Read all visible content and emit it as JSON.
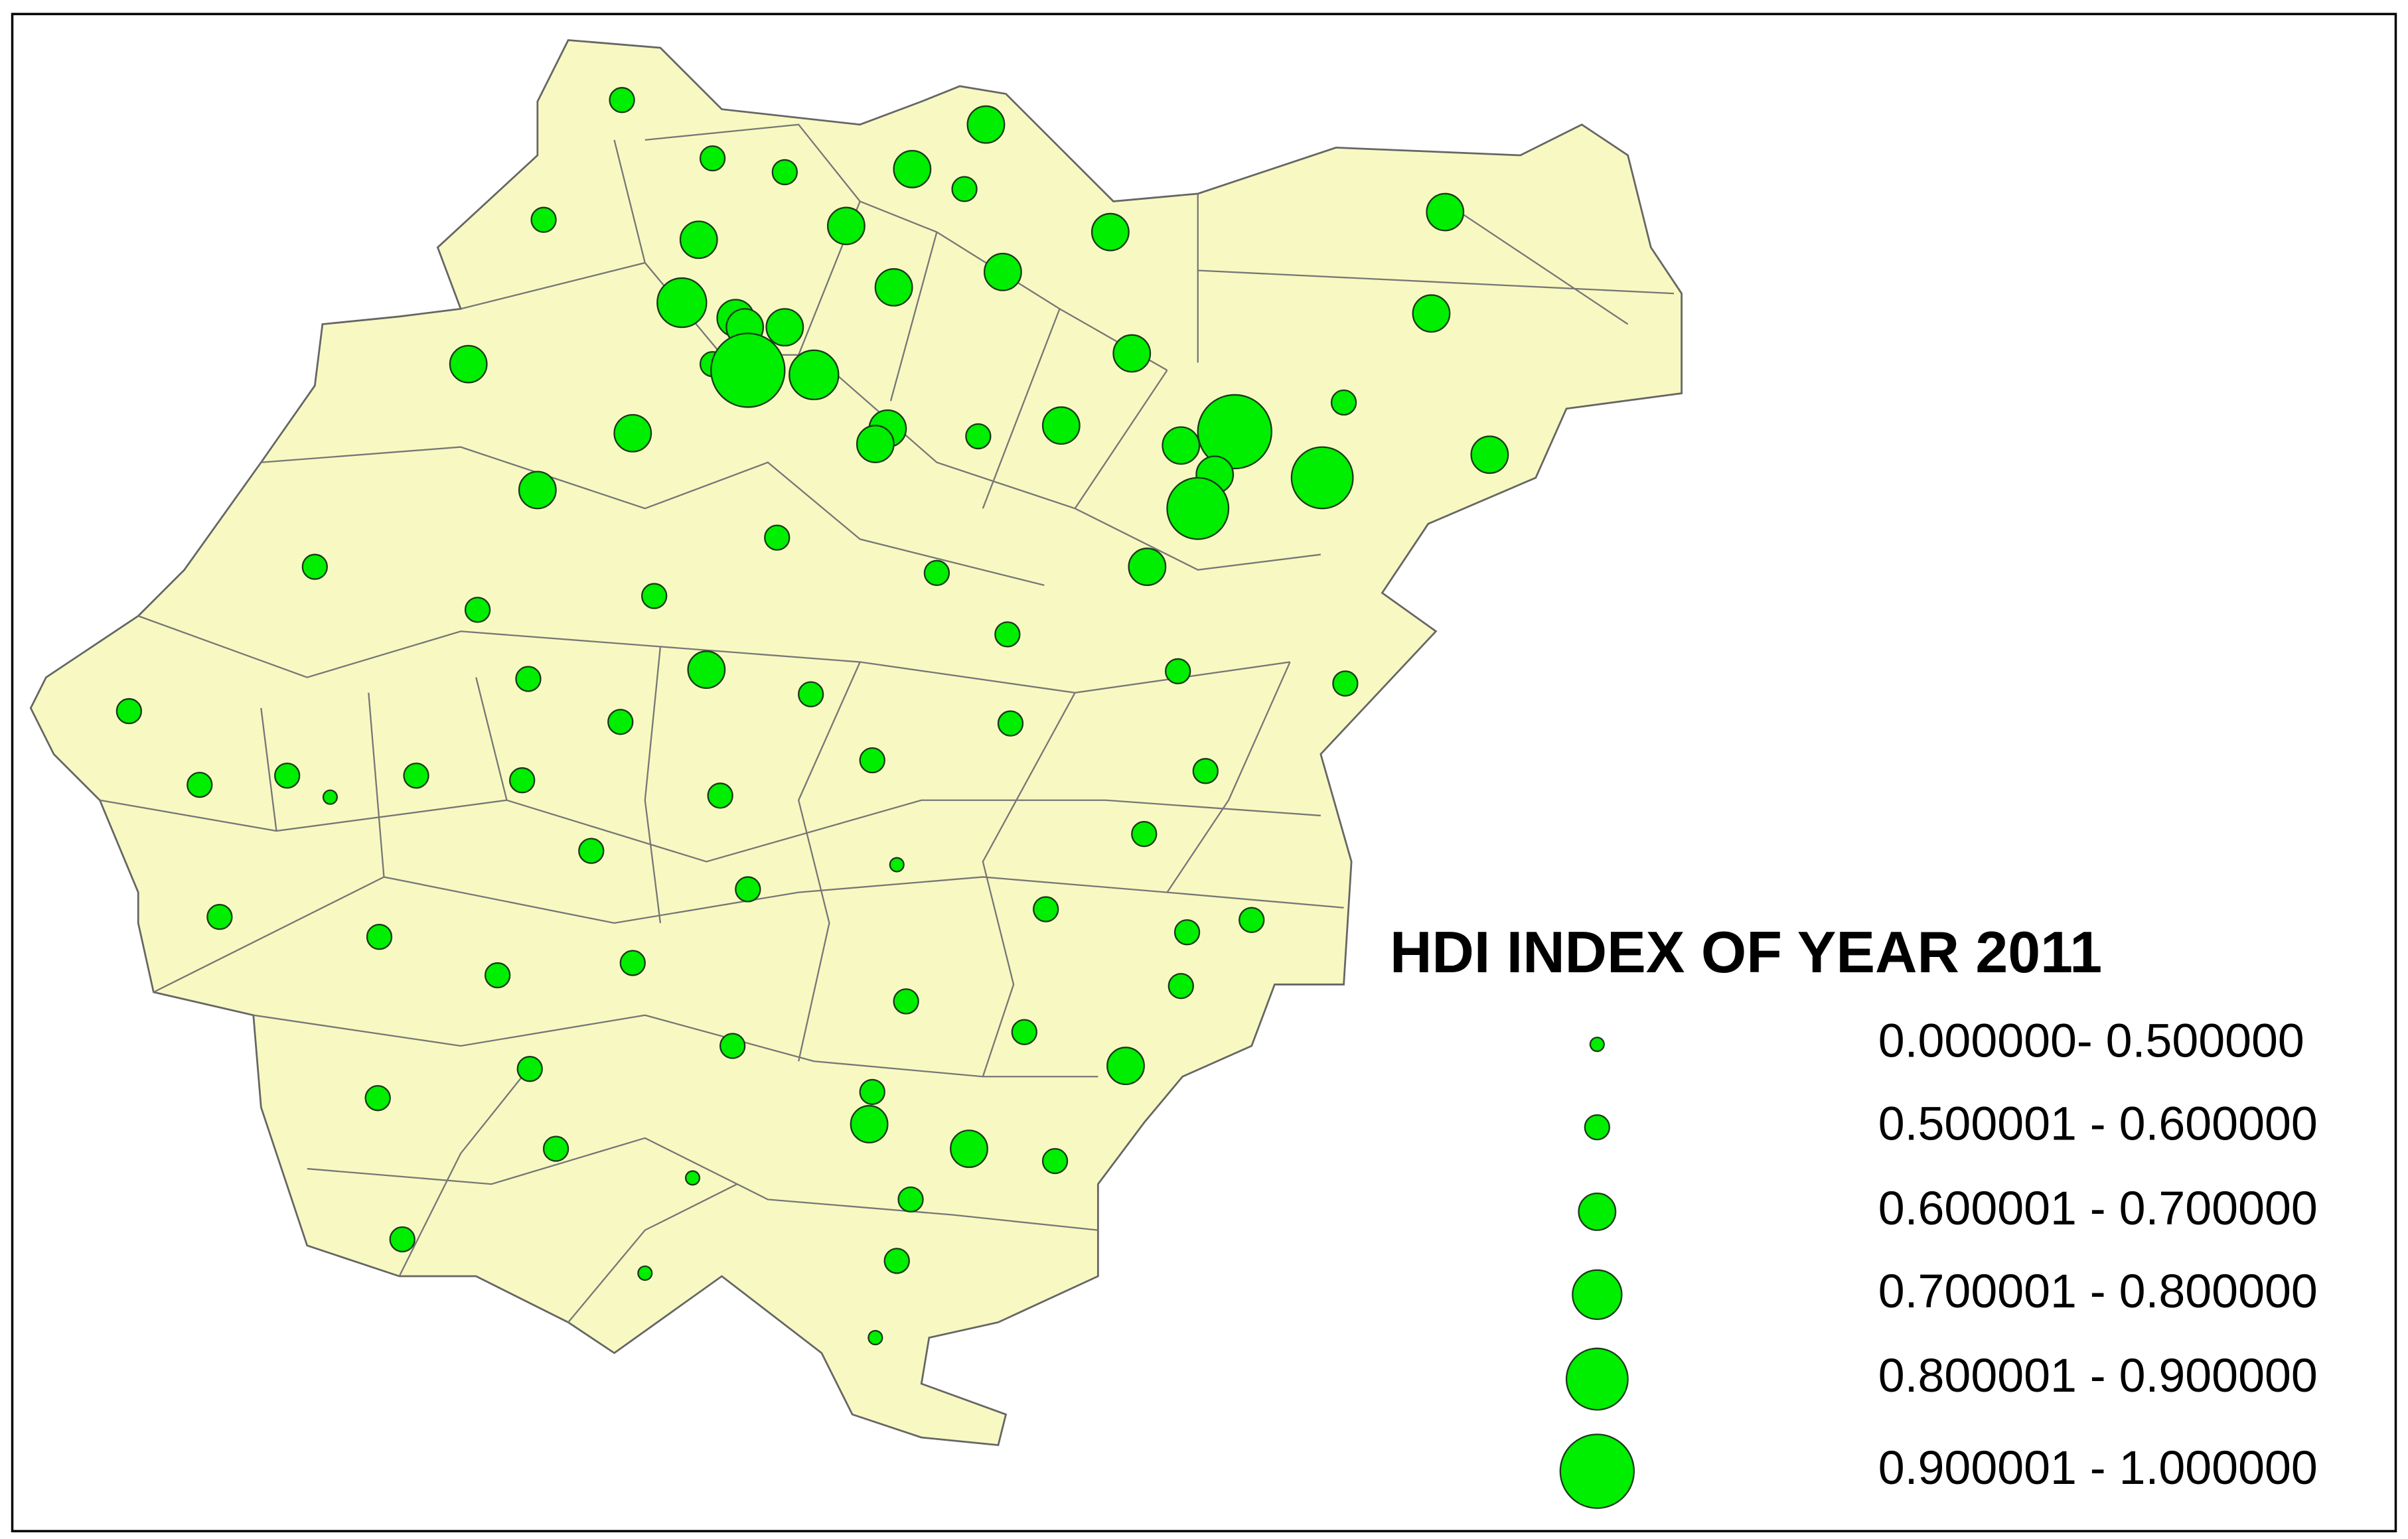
{
  "legend": {
    "title": "HDI INDEX OF YEAR 2011",
    "items": [
      "0.000000- 0.500000",
      "0.500001 - 0.600000",
      "0.600001 - 0.700000",
      "0.700001 - 0.800000",
      "0.800001 - 0.900000",
      "0.900001 - 1.000000"
    ]
  }
}
